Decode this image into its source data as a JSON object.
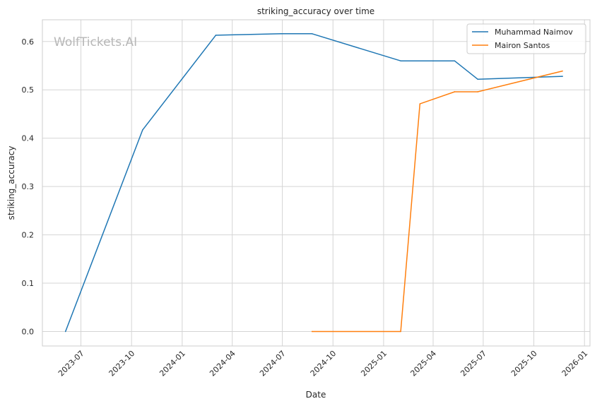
{
  "chart_data": {
    "type": "line",
    "title": "striking_accuracy over time",
    "xlabel": "Date",
    "ylabel": "striking_accuracy",
    "watermark": "WolfTickets.AI",
    "xlim": [
      "2023-04-22",
      "2026-01-11"
    ],
    "ylim": [
      -0.03,
      0.645
    ],
    "x_ticks": [
      "2023-07",
      "2023-10",
      "2024-01",
      "2024-04",
      "2024-07",
      "2024-10",
      "2025-01",
      "2025-04",
      "2025-07",
      "2025-10",
      "2026-01"
    ],
    "y_ticks": [
      "0.0",
      "0.1",
      "0.2",
      "0.3",
      "0.4",
      "0.5",
      "0.6"
    ],
    "grid": true,
    "legend_position": "top-right",
    "series": [
      {
        "name": "Muhammad Naimov",
        "color": "#1f77b4",
        "points": [
          {
            "x": "2023-06-03",
            "y": 0.0
          },
          {
            "x": "2023-10-21",
            "y": 0.417
          },
          {
            "x": "2024-03-02",
            "y": 0.613
          },
          {
            "x": "2024-06-29",
            "y": 0.616
          },
          {
            "x": "2024-08-24",
            "y": 0.616
          },
          {
            "x": "2025-02-01",
            "y": 0.56
          },
          {
            "x": "2025-05-10",
            "y": 0.56
          },
          {
            "x": "2025-06-21",
            "y": 0.522
          },
          {
            "x": "2025-11-22",
            "y": 0.528
          }
        ]
      },
      {
        "name": "Mairon Santos",
        "color": "#ff7f0e",
        "points": [
          {
            "x": "2024-08-24",
            "y": 0.0
          },
          {
            "x": "2025-02-01",
            "y": 0.0
          },
          {
            "x": "2025-03-08",
            "y": 0.471
          },
          {
            "x": "2025-05-10",
            "y": 0.496
          },
          {
            "x": "2025-06-21",
            "y": 0.496
          },
          {
            "x": "2025-11-22",
            "y": 0.539
          }
        ]
      }
    ]
  }
}
